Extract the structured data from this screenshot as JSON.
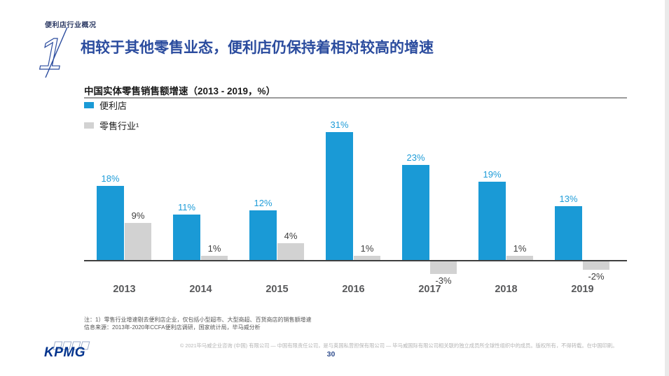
{
  "slide": {
    "eyebrow": "便利店行业概况",
    "section_number": "1",
    "title": "相较于其他零售业态，便利店仍保持着相对较高的增速",
    "notes": [
      "注：1）零售行业增速剔去便利店企业，仅包括小型超市、大型商超、百货商店的销售额增速",
      "信息来源：2013年-2020年CCFA便利店调研，国家统计局，毕马威分析"
    ],
    "footer": {
      "logo": "KPMG",
      "copyright": "© 2021毕马威企业咨询 (中国) 有限公司 — 中国有限责任公司，是与英国私营担保有限公司 — 毕马威国际有限公司相关联的独立成员所全球性组织中的成员。版权所有，不得转载。在中国印刷。",
      "page_number": "30"
    }
  },
  "chart_data": {
    "type": "bar",
    "title": "中国实体零售销售额增速（2013 - 2019，%）",
    "categories": [
      "2013",
      "2014",
      "2015",
      "2016",
      "2017",
      "2018",
      "2019"
    ],
    "series": [
      {
        "name": "便利店",
        "color": "#1a9ad6",
        "label_color": "#1e9cd8",
        "values": [
          18,
          11,
          12,
          31,
          23,
          19,
          13
        ],
        "labels": [
          "18%",
          "11%",
          "12%",
          "31%",
          "23%",
          "19%",
          "13%"
        ]
      },
      {
        "name": "零售行业¹",
        "color": "#d2d2d2",
        "label_color": "#3f3f3f",
        "values": [
          9,
          1,
          4,
          1,
          -3,
          1,
          -2
        ],
        "labels": [
          "9%",
          "1%",
          "4%",
          "1%",
          "-3%",
          "1%",
          "-2%"
        ]
      }
    ],
    "legend_position": "top-left",
    "grid": false,
    "ylim": [
      -5,
      35
    ],
    "axis_color": "#3f3f3f",
    "category_label_color": "#58595b"
  },
  "colors": {
    "title_blue": "#2b4c9e",
    "eyebrow_navy": "#2c3a64",
    "kpmg_blue": "#00338d",
    "bar_blue": "#1a9ad6",
    "bar_gray": "#d2d2d2",
    "page_number_blue": "#33508f"
  }
}
